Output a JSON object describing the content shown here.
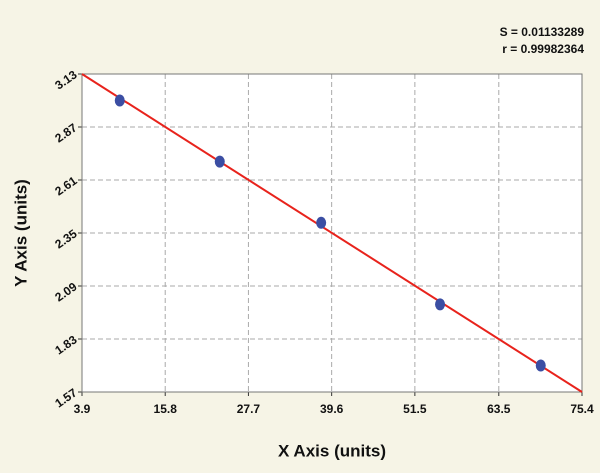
{
  "chart_data": {
    "type": "scatter",
    "x_label": "X Axis (units)",
    "y_label": "Y Axis (units)",
    "annotations": [
      "S = 0.01133289",
      "r = 0.99982364"
    ],
    "x": [
      9.3,
      23.6,
      38.1,
      55.1,
      69.5
    ],
    "values": [
      3.0,
      2.7,
      2.4,
      2.0,
      1.7
    ],
    "color": "#3b4ea3",
    "fit_line": {
      "x": [
        3.9,
        75.4
      ],
      "y": [
        3.13,
        1.57
      ],
      "color": "#e8231c"
    },
    "xlim": [
      3.9,
      75.4
    ],
    "xticks": [
      3.9,
      15.8,
      27.7,
      39.6,
      51.5,
      63.5,
      75.4
    ],
    "ylim": [
      1.57,
      3.13
    ],
    "yticks": [
      1.57,
      1.83,
      2.09,
      2.35,
      2.61,
      2.87,
      3.13
    ],
    "grid": true
  }
}
